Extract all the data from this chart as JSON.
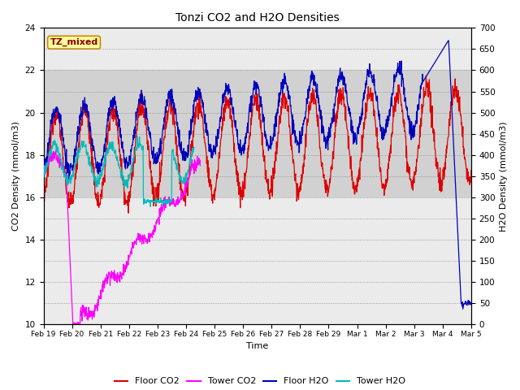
{
  "title": "Tonzi CO2 and H2O Densities",
  "xlabel": "Time",
  "ylabel_left": "CO2 Density (mmol/m3)",
  "ylabel_right": "H2O Density (mmol/m3)",
  "ylim_left": [
    10,
    24
  ],
  "ylim_right": [
    0,
    700
  ],
  "yticks_left": [
    10,
    12,
    14,
    16,
    18,
    20,
    22,
    24
  ],
  "yticks_right": [
    0,
    50,
    100,
    150,
    200,
    250,
    300,
    350,
    400,
    450,
    500,
    550,
    600,
    650,
    700
  ],
  "shade_band": [
    16,
    22
  ],
  "tz_label": "TZ_mixed",
  "legend_labels": [
    "Floor CO2",
    "Tower CO2",
    "Floor H2O",
    "Tower H2O"
  ],
  "colors": {
    "floor_co2": "#DD0000",
    "tower_co2": "#FF00FF",
    "floor_h2o": "#0000BB",
    "tower_h2o": "#00BBBB"
  },
  "xtick_labels": [
    "Feb 19",
    "Feb 20",
    "Feb 21",
    "Feb 22",
    "Feb 23",
    "Feb 24",
    "Feb 25",
    "Feb 26",
    "Feb 27",
    "Feb 28",
    "Feb 29",
    "Mar 1",
    "Mar 2",
    "Mar 3",
    "Mar 4",
    "Mar 5"
  ],
  "figsize": [
    6.4,
    4.8
  ],
  "dpi": 100
}
